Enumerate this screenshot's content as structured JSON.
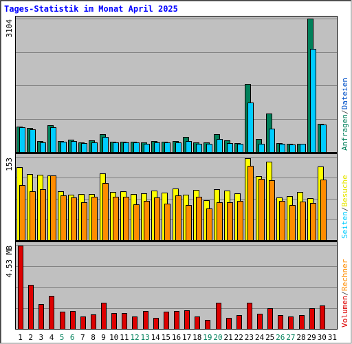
{
  "chart_data": {
    "type": "bar",
    "title": "Tages-Statistik im Monat April 2025",
    "days": [
      "1",
      "2",
      "3",
      "4",
      "5",
      "6",
      "7",
      "8",
      "9",
      "10",
      "11",
      "12",
      "13",
      "14",
      "15",
      "16",
      "17",
      "18",
      "19",
      "20",
      "21",
      "22",
      "23",
      "24",
      "25",
      "26",
      "27",
      "28",
      "29",
      "30",
      "31"
    ],
    "weekend_days": [
      "5",
      "6",
      "12",
      "13",
      "19",
      "20",
      "26",
      "27"
    ],
    "panels": [
      {
        "name": "top",
        "max_label": "3104",
        "ylim": [
          0,
          3104
        ],
        "side_labels": [
          {
            "text": "Anfragen",
            "color": "#00805a"
          },
          {
            "text": "/",
            "color": "#555555"
          },
          {
            "text": "Dateien",
            "color": "#0050c8"
          }
        ],
        "series": [
          {
            "name": "Anfragen",
            "color": "#00805a",
            "values": [
              590,
              560,
              260,
              620,
              260,
              290,
              230,
              270,
              420,
              240,
              240,
              240,
              230,
              250,
              240,
              250,
              360,
              220,
              230,
              420,
              280,
              210,
              1580,
              300,
              900,
              210,
              200,
              200,
              3100,
              650,
              null
            ]
          },
          {
            "name": "Dateien",
            "color": "#00ccff",
            "values": [
              570,
              530,
              230,
              570,
              240,
              250,
              210,
              230,
              350,
              220,
              220,
              220,
              200,
              230,
              220,
              230,
              250,
              200,
              200,
              300,
              210,
              190,
              1150,
              200,
              540,
              190,
              180,
              190,
              2400,
              640,
              null
            ]
          }
        ]
      },
      {
        "name": "middle",
        "max_label": "153",
        "ylim": [
          0,
          153
        ],
        "side_labels": [
          {
            "text": "Seiten",
            "color": "#00ccff"
          },
          {
            "text": "/",
            "color": "#555555"
          },
          {
            "text": "Besuche",
            "color": "#e6e600"
          }
        ],
        "series": [
          {
            "name": "Besuche",
            "color": "#ffff00",
            "values": [
              134,
              121,
              120,
              119,
              90,
              84,
              85,
              85,
              123,
              88,
              90,
              85,
              86,
              91,
              87,
              95,
              84,
              92,
              73,
              93,
              91,
              86,
              150,
              118,
              144,
              78,
              81,
              88,
              77,
              135,
              null
            ]
          },
          {
            "name": "Seiten",
            "color": "#ff8c00",
            "values": [
              101,
              90,
              93,
              119,
              82,
              78,
              70,
              80,
              105,
              80,
              80,
              66,
              72,
              79,
              67,
              82,
              64,
              80,
              58,
              70,
              70,
              72,
              136,
              112,
              110,
              72,
              64,
              71,
              68,
              111,
              null
            ]
          }
        ]
      },
      {
        "name": "bottom",
        "max_label": "4.53 MB",
        "ylim": [
          0,
          4.53
        ],
        "side_labels": [
          {
            "text": "Volumen",
            "color": "#dd0000"
          },
          {
            "text": "/",
            "color": "#555555"
          },
          {
            "text": "Rechner",
            "color": "#ff8c00"
          }
        ],
        "series": [
          {
            "name": "Volumen",
            "color": "#dd0000",
            "values": [
              4.5,
              2.37,
              1.33,
              1.78,
              0.91,
              0.98,
              0.68,
              0.78,
              1.4,
              0.85,
              0.85,
              0.68,
              0.98,
              0.6,
              0.91,
              0.98,
              1.0,
              0.68,
              0.48,
              1.4,
              0.6,
              0.75,
              1.4,
              0.83,
              1.1,
              0.75,
              0.65,
              0.75,
              1.1,
              1.26,
              null
            ]
          }
        ]
      }
    ]
  },
  "colors": {
    "plot_bg": "#c0c0c0",
    "grid": "#808080",
    "frame_dark": "#000000",
    "frame_light": "#ffffff",
    "title": "#0000ff",
    "axis_label": "#000000",
    "weekend_label": "#00805a",
    "divider": "#000000"
  }
}
